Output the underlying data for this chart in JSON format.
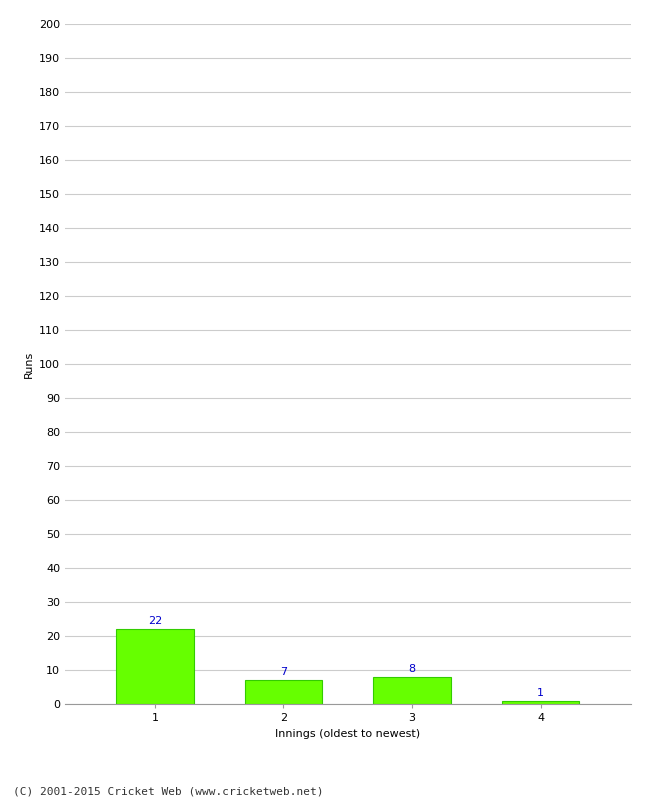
{
  "xlabel": "Innings (oldest to newest)",
  "ylabel": "Runs",
  "categories": [
    "1",
    "2",
    "3",
    "4"
  ],
  "values": [
    22,
    7,
    8,
    1
  ],
  "bar_color": "#66ff00",
  "bar_edge_color": "#33cc00",
  "label_color": "#0000cc",
  "ylim": [
    0,
    200
  ],
  "ytick_step": 10,
  "annotation_fontsize": 8,
  "axis_label_fontsize": 8,
  "tick_fontsize": 8,
  "footer_text": "(C) 2001-2015 Cricket Web (www.cricketweb.net)",
  "footer_fontsize": 8,
  "background_color": "#ffffff",
  "grid_color": "#cccccc"
}
